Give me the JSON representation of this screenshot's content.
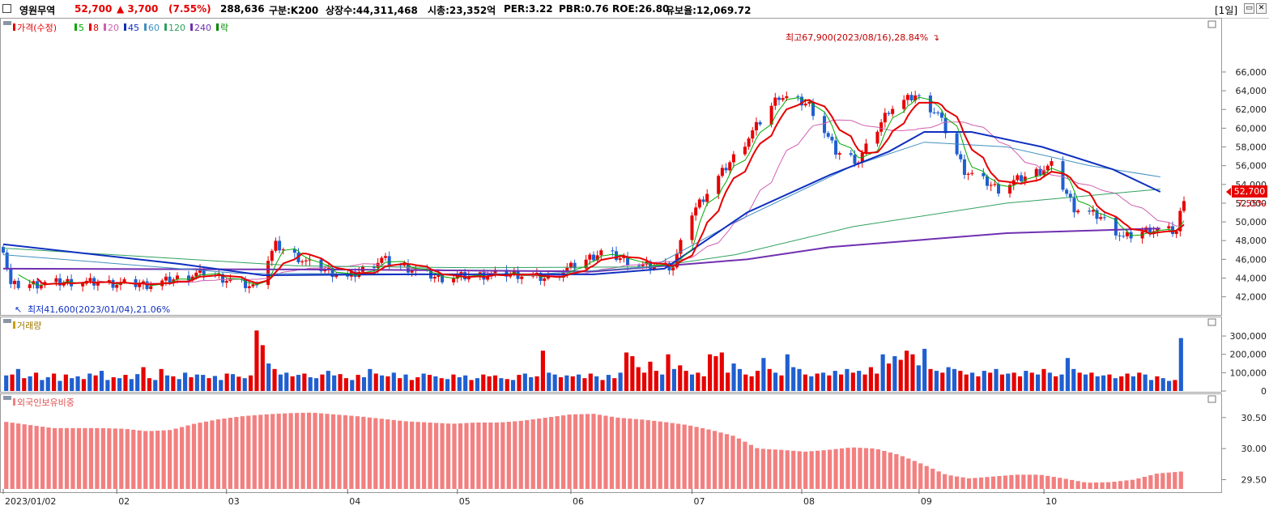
{
  "header": {
    "name": "영원무역",
    "price": "52,700",
    "change": "▲ 3,700",
    "change_pct": "(7.55%)",
    "volume": "288,636",
    "gubun": "구분:K200",
    "listed": "상장수:44,311,468",
    "mktcap": "시총:23,352억",
    "per": "PER:3.22",
    "pbr": "PBR:0.76",
    "roe": "ROE:26.80",
    "float": "유보율:12,069.72",
    "period": "[1일]"
  },
  "legend": {
    "price_label": "가격(수정)",
    "ma": [
      {
        "label": "5",
        "color": "#00aa00"
      },
      {
        "label": "8",
        "color": "#e60000"
      },
      {
        "label": "20",
        "color": "#d060b0"
      },
      {
        "label": "45",
        "color": "#1030c0"
      },
      {
        "label": "60",
        "color": "#4090c0"
      },
      {
        "label": "120",
        "color": "#30a060"
      },
      {
        "label": "240",
        "color": "#7030b0"
      },
      {
        "label": "락",
        "color": "#008800"
      }
    ]
  },
  "annotations": {
    "high": "최고67,900(2023/08/16),28.84%",
    "low": "최저41,600(2023/01/04),21.06%",
    "last_price": "52,700",
    "last_pct": "7.55%"
  },
  "panels": {
    "volume_title": "거래량",
    "foreign_title": "외국인보유비중"
  },
  "colors": {
    "up": "#e60000",
    "down": "#1f5fd0",
    "foreign": "#f28080"
  },
  "chart_data": [
    {
      "type": "candlestick",
      "title": "가격(수정)",
      "y_ticks": [
        "42,000",
        "44,000",
        "46,000",
        "48,000",
        "50,000",
        "52,000",
        "54,000",
        "56,000",
        "58,000",
        "60,000",
        "62,000",
        "64,000",
        "66,000"
      ],
      "ylim": [
        40500,
        68500
      ],
      "x_tick_labels": [
        "2023/01/02",
        "02",
        "03",
        "04",
        "05",
        "06",
        "07",
        "08",
        "09",
        "10"
      ],
      "x_tick_dates": [
        "2023-01-02",
        "2023-02-01",
        "2023-03-02",
        "2023-04-03",
        "2023-05-02",
        "2023-06-01",
        "2023-07-03",
        "2023-08-01",
        "2023-09-01",
        "2023-10-04"
      ],
      "anchors": [
        {
          "date": "2023-01-02",
          "close": 47200
        },
        {
          "date": "2023-01-04",
          "close": 43200
        },
        {
          "date": "2023-01-20",
          "close": 43600
        },
        {
          "date": "2023-02-10",
          "close": 43300
        },
        {
          "date": "2023-02-24",
          "close": 44600
        },
        {
          "date": "2023-03-09",
          "close": 43000
        },
        {
          "date": "2023-03-15",
          "close": 47500
        },
        {
          "date": "2023-03-24",
          "close": 45500
        },
        {
          "date": "2023-04-03",
          "close": 44000
        },
        {
          "date": "2023-04-12",
          "close": 46000
        },
        {
          "date": "2023-04-27",
          "close": 44000
        },
        {
          "date": "2023-05-16",
          "close": 44500
        },
        {
          "date": "2023-05-26",
          "close": 43900
        },
        {
          "date": "2023-06-09",
          "close": 46800
        },
        {
          "date": "2023-06-20",
          "close": 45300
        },
        {
          "date": "2023-06-28",
          "close": 45300
        },
        {
          "date": "2023-07-03",
          "close": 51000
        },
        {
          "date": "2023-07-17",
          "close": 58500
        },
        {
          "date": "2023-07-26",
          "close": 63500
        },
        {
          "date": "2023-08-03",
          "close": 62500
        },
        {
          "date": "2023-08-10",
          "close": 57500
        },
        {
          "date": "2023-08-16",
          "close": 56500
        },
        {
          "date": "2023-08-24",
          "close": 62000
        },
        {
          "date": "2023-08-31",
          "close": 63500
        },
        {
          "date": "2023-09-06",
          "close": 61500
        },
        {
          "date": "2023-09-13",
          "close": 55500
        },
        {
          "date": "2023-09-22",
          "close": 53500
        },
        {
          "date": "2023-09-27",
          "close": 54500
        },
        {
          "date": "2023-10-06",
          "close": 56000
        },
        {
          "date": "2023-10-12",
          "close": 51500
        },
        {
          "date": "2023-10-19",
          "close": 50500
        },
        {
          "date": "2023-10-25",
          "close": 48300
        },
        {
          "date": "2023-11-01",
          "close": 49200
        },
        {
          "date": "2023-11-08",
          "close": 49000
        },
        {
          "date": "2023-11-10",
          "close": 52700
        }
      ],
      "ma_lines": [
        {
          "name": "240",
          "color": "#7030b0",
          "points": [
            [
              0,
              45000
            ],
            [
              0.3,
              44900
            ],
            [
              0.5,
              44700
            ],
            [
              0.63,
              46000
            ],
            [
              0.7,
              47300
            ],
            [
              0.85,
              48800
            ],
            [
              0.98,
              49300
            ]
          ]
        },
        {
          "name": "120",
          "color": "#30a060",
          "points": [
            [
              0,
              47200
            ],
            [
              0.25,
              45300
            ],
            [
              0.4,
              45100
            ],
            [
              0.55,
              45200
            ],
            [
              0.62,
              46500
            ],
            [
              0.72,
              49500
            ],
            [
              0.85,
              52000
            ],
            [
              0.98,
              53500
            ]
          ]
        },
        {
          "name": "60",
          "color": "#4090c0",
          "points": [
            [
              0,
              46500
            ],
            [
              0.2,
              44500
            ],
            [
              0.45,
              44400
            ],
            [
              0.55,
              45200
            ],
            [
              0.62,
              50000
            ],
            [
              0.72,
              56000
            ],
            [
              0.78,
              58500
            ],
            [
              0.85,
              58000
            ],
            [
              0.92,
              56000
            ],
            [
              0.98,
              54800
            ]
          ]
        },
        {
          "name": "45",
          "color": "#1030c0",
          "points": [
            [
              0,
              47600
            ],
            [
              0.15,
              45500
            ],
            [
              0.22,
              44300
            ],
            [
              0.35,
              44400
            ],
            [
              0.5,
              44400
            ],
            [
              0.56,
              45000
            ],
            [
              0.63,
              51000
            ],
            [
              0.7,
              55000
            ],
            [
              0.75,
              57500
            ],
            [
              0.78,
              59600
            ],
            [
              0.82,
              59600
            ],
            [
              0.88,
              58000
            ],
            [
              0.94,
              55600
            ],
            [
              0.98,
              53200
            ]
          ]
        }
      ]
    },
    {
      "type": "bar",
      "title": "거래량",
      "y_ticks": [
        "0",
        "100,000",
        "200,000",
        "300,000"
      ],
      "ylim": [
        0,
        340000
      ],
      "values": [
        85000,
        90000,
        120000,
        70000,
        80000,
        100000,
        60000,
        75000,
        95000,
        55000,
        90000,
        70000,
        80000,
        65000,
        95000,
        85000,
        110000,
        60000,
        75000,
        70000,
        88000,
        65000,
        92000,
        130000,
        70000,
        60000,
        120000,
        85000,
        80000,
        65000,
        100000,
        75000,
        90000,
        88000,
        70000,
        82000,
        60000,
        95000,
        92000,
        78000,
        70000,
        85000,
        330000,
        250000,
        150000,
        120000,
        90000,
        100000,
        80000,
        88000,
        95000,
        75000,
        70000,
        90000,
        110000,
        85000,
        92000,
        70000,
        60000,
        88000,
        75000,
        120000,
        95000,
        85000,
        80000,
        100000,
        70000,
        90000,
        60000,
        75000,
        95000,
        88000,
        80000,
        70000,
        65000,
        90000,
        75000,
        85000,
        60000,
        70000,
        90000,
        80000,
        85000,
        70000,
        65000,
        60000,
        88000,
        95000,
        75000,
        80000,
        220000,
        100000,
        90000,
        75000,
        85000,
        80000,
        90000,
        70000,
        95000,
        80000,
        60000,
        88000,
        70000,
        100000,
        210000,
        190000,
        130000,
        100000,
        160000,
        110000,
        90000,
        200000,
        120000,
        140000,
        110000,
        90000,
        100000,
        80000,
        200000,
        190000,
        210000,
        100000,
        150000,
        120000,
        90000,
        80000,
        110000,
        180000,
        120000,
        100000,
        85000,
        200000,
        130000,
        120000,
        90000,
        80000,
        95000,
        100000,
        85000,
        110000,
        90000,
        120000,
        100000,
        110000,
        90000,
        130000,
        95000,
        200000,
        150000,
        190000,
        170000,
        220000,
        200000,
        140000,
        230000,
        120000,
        110000,
        100000,
        130000,
        120000,
        110000,
        90000,
        100000,
        80000,
        110000,
        100000,
        120000,
        90000,
        95000,
        100000,
        80000,
        110000,
        100000,
        90000,
        120000,
        100000,
        80000,
        90000,
        180000,
        120000,
        100000,
        90000,
        100000,
        80000,
        85000,
        90000,
        70000,
        80000,
        95000,
        80000,
        100000,
        90000,
        60000,
        80000,
        70000,
        55000,
        60000,
        288636
      ],
      "ups": [
        0,
        1,
        0,
        1,
        0,
        1,
        0,
        0,
        1,
        0,
        1,
        0,
        0,
        1,
        0,
        1,
        0,
        0,
        1,
        0,
        1,
        0,
        0,
        1,
        1,
        0,
        1,
        0,
        1,
        0,
        0,
        1,
        0,
        0,
        1,
        0,
        0,
        1,
        0,
        1,
        0,
        1,
        1,
        1,
        0,
        1,
        0,
        0,
        1,
        0,
        1,
        0,
        0,
        1,
        0,
        0,
        1,
        1,
        0,
        1,
        0,
        0,
        1,
        0,
        1,
        0,
        1,
        0,
        1,
        1,
        0,
        1,
        0,
        1,
        0,
        1,
        0,
        0,
        1,
        0,
        1,
        1,
        1,
        0,
        1,
        0,
        1,
        0,
        0,
        1,
        1,
        0,
        0,
        1,
        0,
        1,
        0,
        1,
        1,
        0,
        1,
        0,
        1,
        0,
        1,
        1,
        1,
        1,
        1,
        1,
        0,
        1,
        0,
        1,
        1,
        0,
        1,
        1,
        1,
        1,
        1,
        1,
        0,
        0,
        1,
        1,
        1,
        0,
        1,
        0,
        1,
        0,
        0,
        0,
        1,
        0,
        1,
        0,
        1,
        0,
        1,
        0,
        1,
        0,
        1,
        1,
        1,
        0,
        1,
        0,
        1,
        1,
        1,
        0,
        0,
        1,
        0,
        1,
        0,
        0,
        1,
        1,
        0,
        1,
        0,
        1,
        0,
        1,
        0,
        1,
        1,
        0,
        1,
        0,
        1,
        0,
        1,
        0,
        0,
        0,
        1,
        0,
        1,
        0,
        0,
        1,
        0,
        1,
        1,
        0,
        1,
        0,
        0,
        1,
        0,
        0,
        1,
        0,
        1
      ]
    },
    {
      "type": "bar",
      "title": "외국인보유비중",
      "y_ticks": [
        "29.50",
        "30.00",
        "30.50"
      ],
      "ylim": [
        29.35,
        30.68
      ],
      "anchors": [
        [
          0,
          30.43
        ],
        [
          0.02,
          30.38
        ],
        [
          0.04,
          30.33
        ],
        [
          0.06,
          30.33
        ],
        [
          0.08,
          30.33
        ],
        [
          0.1,
          30.32
        ],
        [
          0.12,
          30.28
        ],
        [
          0.14,
          30.3
        ],
        [
          0.16,
          30.4
        ],
        [
          0.18,
          30.47
        ],
        [
          0.2,
          30.52
        ],
        [
          0.22,
          30.55
        ],
        [
          0.24,
          30.57
        ],
        [
          0.26,
          30.58
        ],
        [
          0.28,
          30.55
        ],
        [
          0.3,
          30.52
        ],
        [
          0.32,
          30.48
        ],
        [
          0.34,
          30.44
        ],
        [
          0.36,
          30.42
        ],
        [
          0.38,
          30.4
        ],
        [
          0.4,
          30.42
        ],
        [
          0.42,
          30.42
        ],
        [
          0.44,
          30.45
        ],
        [
          0.46,
          30.5
        ],
        [
          0.48,
          30.55
        ],
        [
          0.5,
          30.56
        ],
        [
          0.52,
          30.5
        ],
        [
          0.54,
          30.47
        ],
        [
          0.56,
          30.43
        ],
        [
          0.58,
          30.38
        ],
        [
          0.6,
          30.3
        ],
        [
          0.62,
          30.2
        ],
        [
          0.64,
          30.0
        ],
        [
          0.66,
          29.98
        ],
        [
          0.68,
          29.95
        ],
        [
          0.7,
          29.98
        ],
        [
          0.72,
          30.02
        ],
        [
          0.74,
          30.0
        ],
        [
          0.76,
          29.9
        ],
        [
          0.78,
          29.75
        ],
        [
          0.8,
          29.58
        ],
        [
          0.82,
          29.52
        ],
        [
          0.84,
          29.55
        ],
        [
          0.86,
          29.58
        ],
        [
          0.88,
          29.58
        ],
        [
          0.9,
          29.52
        ],
        [
          0.92,
          29.45
        ],
        [
          0.94,
          29.46
        ],
        [
          0.96,
          29.5
        ],
        [
          0.98,
          29.6
        ],
        [
          1,
          29.63
        ]
      ]
    }
  ]
}
